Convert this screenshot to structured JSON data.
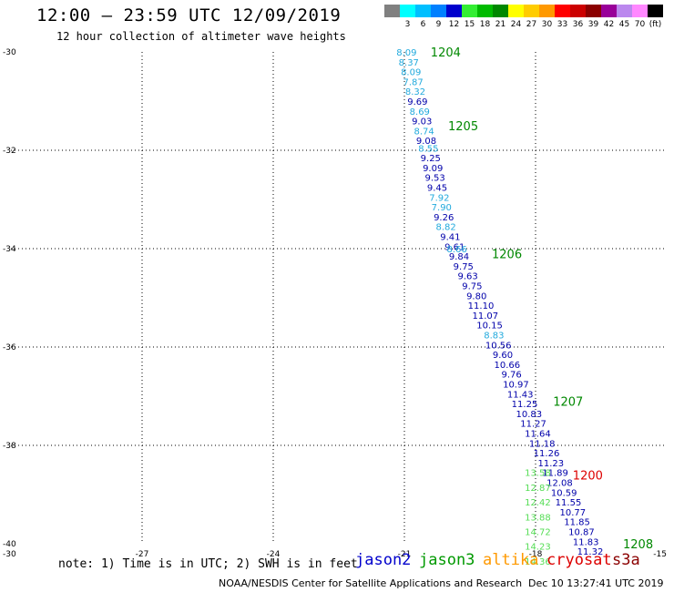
{
  "title": "12:00 – 23:59 UTC 12/09/2019",
  "subtitle": "12 hour collection of altimeter wave heights",
  "color_scale": {
    "unit": "(ft)",
    "bins": [
      {
        "label": "",
        "color": "#808080"
      },
      {
        "label": "3",
        "color": "#00ffff"
      },
      {
        "label": "6",
        "color": "#00bfff"
      },
      {
        "label": "9",
        "color": "#0080ff"
      },
      {
        "label": "12",
        "color": "#0000cd"
      },
      {
        "label": "15",
        "color": "#33ee33"
      },
      {
        "label": "18",
        "color": "#00bb00"
      },
      {
        "label": "21",
        "color": "#008800"
      },
      {
        "label": "24",
        "color": "#ffff00"
      },
      {
        "label": "27",
        "color": "#ffcc00"
      },
      {
        "label": "30",
        "color": "#ff9900"
      },
      {
        "label": "33",
        "color": "#ff0000"
      },
      {
        "label": "36",
        "color": "#cc0000"
      },
      {
        "label": "39",
        "color": "#8b0000"
      },
      {
        "label": "42",
        "color": "#990099"
      },
      {
        "label": "45",
        "color": "#bb88ee"
      },
      {
        "label": "70",
        "color": "#ff88ff"
      },
      {
        "label": "(ft)",
        "color": "#000000"
      }
    ]
  },
  "axes": {
    "lat_ticks": [
      "-30",
      "-32",
      "-34",
      "-36",
      "-38",
      "-40"
    ],
    "lon_ticks": [
      "-30",
      "-27",
      "-24",
      "-21",
      "-18",
      "-15"
    ],
    "lat_range": [
      -40,
      -30
    ],
    "lon_range": [
      -30,
      -15
    ],
    "grid": "dotted"
  },
  "tracks": [
    {
      "satellite": "jason2",
      "color": "#0000aa",
      "points": [
        {
          "lon": -20.95,
          "lat": -30.0,
          "v": "8.09",
          "c": "#22aadd"
        },
        {
          "lon": -20.9,
          "lat": -30.2,
          "v": "8.37",
          "c": "#22aadd"
        },
        {
          "lon": -20.85,
          "lat": -30.4,
          "v": "8.09",
          "c": "#22aadd"
        },
        {
          "lon": -20.8,
          "lat": -30.6,
          "v": "7.87",
          "c": "#22aadd"
        },
        {
          "lon": -20.75,
          "lat": -30.8,
          "v": "8.32",
          "c": "#22aadd"
        },
        {
          "lon": -20.7,
          "lat": -31.0,
          "v": "9.69",
          "c": "#0000aa"
        },
        {
          "lon": -20.65,
          "lat": -31.2,
          "v": "8.69",
          "c": "#22aadd"
        },
        {
          "lon": -20.6,
          "lat": -31.4,
          "v": "9.03",
          "c": "#0000aa"
        },
        {
          "lon": -20.55,
          "lat": -31.6,
          "v": "8.74",
          "c": "#22aadd"
        },
        {
          "lon": -20.5,
          "lat": -31.8,
          "v": "9.08",
          "c": "#0000aa"
        },
        {
          "lon": -20.45,
          "lat": -31.95,
          "v": "8.55",
          "c": "#22aadd"
        },
        {
          "lon": -20.4,
          "lat": -32.15,
          "v": "9.25",
          "c": "#0000aa"
        },
        {
          "lon": -20.35,
          "lat": -32.35,
          "v": "9.09",
          "c": "#0000aa"
        },
        {
          "lon": -20.3,
          "lat": -32.55,
          "v": "9.53",
          "c": "#0000aa"
        },
        {
          "lon": -20.25,
          "lat": -32.75,
          "v": "9.45",
          "c": "#0000aa"
        },
        {
          "lon": -20.2,
          "lat": -32.95,
          "v": "7.92",
          "c": "#22aadd"
        },
        {
          "lon": -20.15,
          "lat": -33.15,
          "v": "7.90",
          "c": "#22aadd"
        },
        {
          "lon": -20.1,
          "lat": -33.35,
          "v": "9.26",
          "c": "#0000aa"
        },
        {
          "lon": -20.05,
          "lat": -33.55,
          "v": "8.82",
          "c": "#22aadd"
        },
        {
          "lon": -19.95,
          "lat": -33.75,
          "v": "9.41",
          "c": "#0000aa"
        },
        {
          "lon": -19.85,
          "lat": -33.95,
          "v": "9.61",
          "c": "#0000aa"
        },
        {
          "lon": -19.8,
          "lat": -34.0,
          "v": "8.66",
          "c": "#22aadd"
        },
        {
          "lon": -19.75,
          "lat": -34.15,
          "v": "9.84",
          "c": "#0000aa"
        },
        {
          "lon": -19.65,
          "lat": -34.35,
          "v": "9.75",
          "c": "#0000aa"
        },
        {
          "lon": -19.55,
          "lat": -34.55,
          "v": "9.63",
          "c": "#0000aa"
        },
        {
          "lon": -19.45,
          "lat": -34.75,
          "v": "9.75",
          "c": "#0000aa"
        },
        {
          "lon": -19.35,
          "lat": -34.95,
          "v": "9.80",
          "c": "#0000aa"
        },
        {
          "lon": -19.25,
          "lat": -35.15,
          "v": "11.10",
          "c": "#0000aa"
        },
        {
          "lon": -19.15,
          "lat": -35.35,
          "v": "11.07",
          "c": "#0000aa"
        },
        {
          "lon": -19.05,
          "lat": -35.55,
          "v": "10.15",
          "c": "#0000aa"
        },
        {
          "lon": -18.95,
          "lat": -35.75,
          "v": "8.83",
          "c": "#22aadd"
        },
        {
          "lon": -18.85,
          "lat": -35.95,
          "v": "10.56",
          "c": "#0000aa"
        },
        {
          "lon": -18.75,
          "lat": -36.15,
          "v": "9.60",
          "c": "#0000aa"
        },
        {
          "lon": -18.65,
          "lat": -36.35,
          "v": "10.66",
          "c": "#0000aa"
        },
        {
          "lon": -18.55,
          "lat": -36.55,
          "v": "9.76",
          "c": "#0000aa"
        },
        {
          "lon": -18.45,
          "lat": -36.75,
          "v": "10.97",
          "c": "#0000aa"
        },
        {
          "lon": -18.35,
          "lat": -36.95,
          "v": "11.43",
          "c": "#0000aa"
        },
        {
          "lon": -18.25,
          "lat": -37.15,
          "v": "11.25",
          "c": "#0000aa"
        },
        {
          "lon": -18.15,
          "lat": -37.35,
          "v": "10.83",
          "c": "#0000aa"
        },
        {
          "lon": -18.05,
          "lat": -37.55,
          "v": "11.27",
          "c": "#0000aa"
        },
        {
          "lon": -17.95,
          "lat": -37.75,
          "v": "11.64",
          "c": "#0000aa"
        },
        {
          "lon": -17.85,
          "lat": -37.95,
          "v": "11.18",
          "c": "#0000aa"
        },
        {
          "lon": -17.75,
          "lat": -38.15,
          "v": "11.26",
          "c": "#0000aa"
        },
        {
          "lon": -17.65,
          "lat": -38.35,
          "v": "11.23",
          "c": "#0000aa"
        },
        {
          "lon": -17.55,
          "lat": -38.55,
          "v": "11.89",
          "c": "#0000aa"
        },
        {
          "lon": -17.45,
          "lat": -38.75,
          "v": "12.08",
          "c": "#0000aa"
        },
        {
          "lon": -17.35,
          "lat": -38.95,
          "v": "10.59",
          "c": "#0000aa"
        },
        {
          "lon": -17.25,
          "lat": -39.15,
          "v": "11.55",
          "c": "#0000aa"
        },
        {
          "lon": -17.15,
          "lat": -39.35,
          "v": "10.77",
          "c": "#0000aa"
        },
        {
          "lon": -17.05,
          "lat": -39.55,
          "v": "11.85",
          "c": "#0000aa"
        },
        {
          "lon": -16.95,
          "lat": -39.75,
          "v": "10.87",
          "c": "#0000aa"
        },
        {
          "lon": -16.85,
          "lat": -39.95,
          "v": "11.83",
          "c": "#0000aa"
        },
        {
          "lon": -16.75,
          "lat": -40.15,
          "v": "11.32",
          "c": "#0000aa"
        }
      ],
      "time_labels": [
        {
          "lon": -20.4,
          "lat": -30.0,
          "t": "1204",
          "c": "#008800"
        },
        {
          "lon": -20.0,
          "lat": -31.5,
          "t": "1205",
          "c": "#008800"
        },
        {
          "lon": -19.0,
          "lat": -34.1,
          "t": "1206",
          "c": "#008800"
        },
        {
          "lon": -17.6,
          "lat": -37.1,
          "t": "1207",
          "c": "#008800"
        },
        {
          "lon": -16.0,
          "lat": -40.0,
          "t": "1208",
          "c": "#008800"
        }
      ]
    },
    {
      "satellite": "jason3",
      "color": "#55dd55",
      "points": [
        {
          "lon": -17.95,
          "lat": -38.55,
          "v": "13.58",
          "c": "#55dd55"
        },
        {
          "lon": -17.95,
          "lat": -38.85,
          "v": "12.87",
          "c": "#55dd55"
        },
        {
          "lon": -17.95,
          "lat": -39.15,
          "v": "12.42",
          "c": "#55dd55"
        },
        {
          "lon": -17.95,
          "lat": -39.45,
          "v": "13.88",
          "c": "#55dd55"
        },
        {
          "lon": -17.95,
          "lat": -39.75,
          "v": "14.72",
          "c": "#55dd55"
        },
        {
          "lon": -17.95,
          "lat": -40.05,
          "v": "14.23",
          "c": "#55dd55"
        },
        {
          "lon": -17.95,
          "lat": -40.35,
          "v": "14.36",
          "c": "#55dd55"
        }
      ],
      "time_labels": [
        {
          "lon": -17.15,
          "lat": -38.6,
          "t": "1200",
          "c": "#dd0000"
        }
      ]
    }
  ],
  "note": "note: 1) Time is in UTC; 2) SWH is in feet",
  "legend": [
    {
      "label": "jason2",
      "color": "#0000cc"
    },
    {
      "label": "jason3",
      "color": "#009900"
    },
    {
      "label": "altika",
      "color": "#ff9900"
    },
    {
      "label": "cryosat",
      "color": "#dd0000"
    },
    {
      "label": "s3a",
      "color": "#8b0000"
    }
  ],
  "credit": "NOAA/NESDIS Center for Satellite Applications and Research",
  "timestamp": "Dec 10 13:27:41 UTC 2019"
}
